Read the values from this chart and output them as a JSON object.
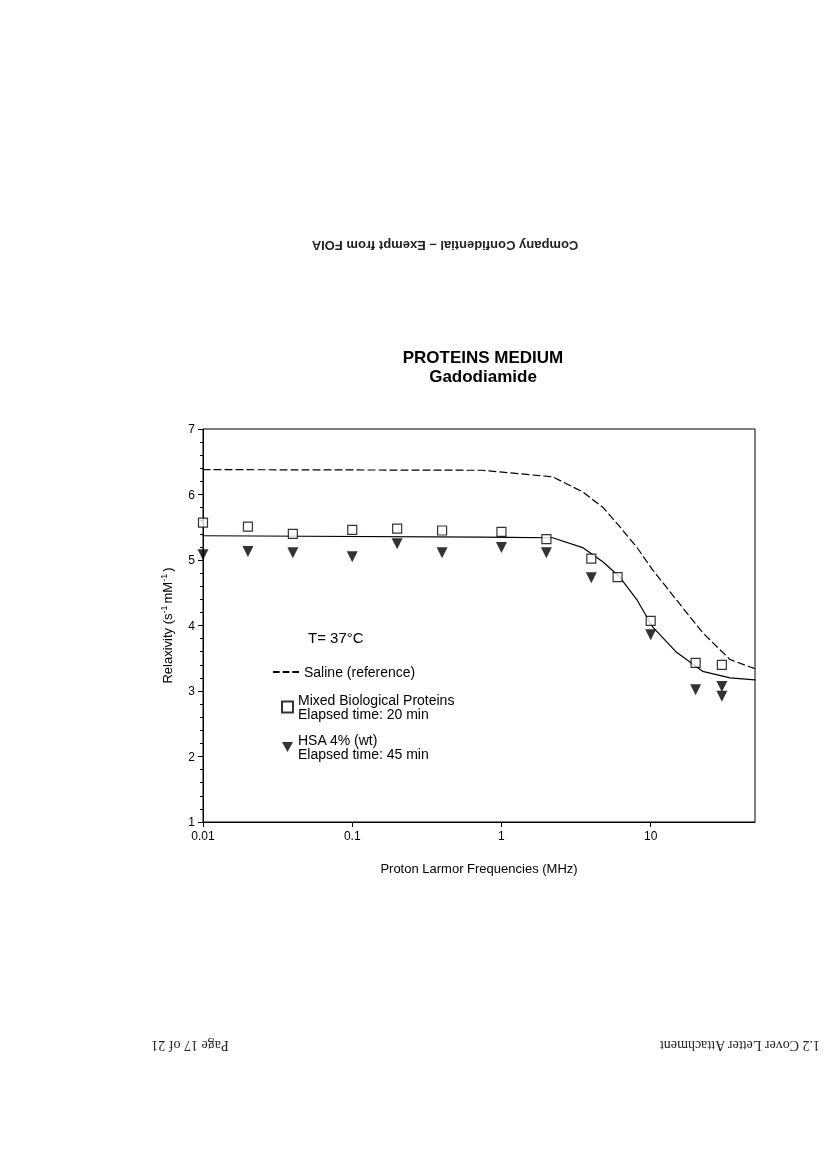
{
  "chart_data": {
    "type": "line",
    "title": "PROTEINS MEDIUM",
    "subtitle": "Gadodiamide",
    "xlabel": "Proton Larmor Frequencies (MHz)",
    "ylabel": "Relaxivity (s$^{-1}$mM$^{-1}$)",
    "log": "x",
    "xlim": [
      0.01,
      50
    ],
    "xticks": [
      0.01,
      0.1,
      1,
      10
    ],
    "ylim": [
      1,
      7
    ],
    "yticks": [
      1,
      2,
      3,
      4,
      5,
      6,
      7
    ],
    "grid": false,
    "legend": "bottom left",
    "annotations": [
      "T= 37°C",
      "Company Confidential – Exempt from FOIA",
      "1.2 Cover Letter Attachment",
      "Page 17 of 21"
    ],
    "series": [
      {
        "name": "Saline (reference)",
        "color": "#000000",
        "marker": "none",
        "line_style": "dashed",
        "x": [
          0.01,
          0.74,
          2.2,
          3.5,
          4.8,
          6.2,
          8.1,
          10.3,
          14.9,
          22.3,
          34,
          50
        ],
        "values": [
          6.38,
          6.37,
          6.27,
          6.04,
          5.8,
          5.51,
          5.19,
          4.85,
          4.39,
          3.89,
          3.48,
          3.34
        ]
      },
      {
        "name": "Mixed Biological Proteins\nElapsed time: 20 min",
        "type": "scatter",
        "color": "#000000",
        "marker": "square",
        "x": [
          0.01,
          0.02,
          0.04,
          0.1,
          0.2,
          0.4,
          1,
          2,
          4,
          6,
          10,
          20,
          30
        ],
        "values": [
          5.57,
          5.51,
          5.4,
          5.46,
          5.48,
          5.45,
          5.43,
          5.32,
          5.02,
          4.74,
          4.07,
          3.43,
          3.4
        ]
      },
      {
        "name": "HSA 4% (wt)\nElapsed time: 45 min",
        "type": "scatter",
        "color": "#000000",
        "marker": "triangle",
        "x": [
          0.01,
          0.02,
          0.04,
          0.1,
          0.2,
          0.4,
          1,
          2,
          4,
          10,
          20,
          30,
          30
        ],
        "values": [
          5.08,
          5.13,
          5.11,
          5.05,
          5.25,
          5.11,
          5.19,
          5.11,
          4.73,
          3.86,
          3.02,
          3.07,
          2.92
        ]
      },
      {
        "color": "#000000",
        "marker": "none",
        "line_style": "solid",
        "x": [
          0.01,
          0.74,
          2.2,
          3.5,
          4.8,
          6.2,
          8.1,
          10.3,
          14.9,
          22.3,
          34,
          50
        ],
        "values": [
          5.37,
          5.35,
          5.34,
          5.19,
          4.97,
          4.74,
          4.39,
          3.98,
          3.59,
          3.3,
          3.2,
          3.17
        ]
      }
    ]
  }
}
